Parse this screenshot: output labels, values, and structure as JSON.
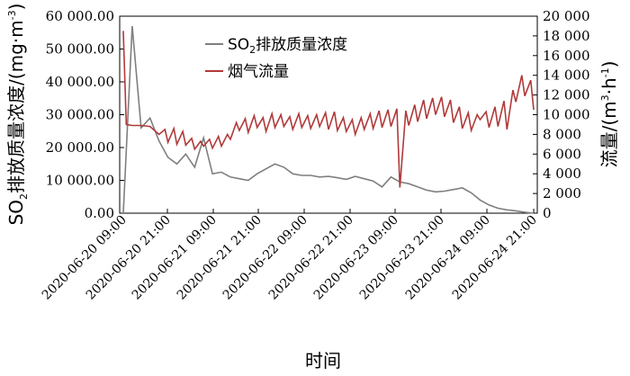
{
  "chart_data": {
    "type": "line",
    "x_ticks": [
      "2020-06-20 09:00",
      "2020-06-20 21:00",
      "2020-06-21 09:00",
      "2020-06-21 21:00",
      "2020-06-22 09:00",
      "2020-06-22 21:00",
      "2020-06-23 09:00",
      "2020-06-23 21:00",
      "2020-06-24 09:00",
      "2020-06-24 21:00"
    ],
    "xlabel": "时间",
    "ylabel_left": "SO2排放质量浓度/(mg·m-3)",
    "ylabel_left_parts": {
      "pre": "SO",
      "sub": "2",
      "post": "排放质量浓度/(mg·m",
      "sup": "-3",
      "end": ")"
    },
    "ylabel_right": "流量/(m3·h-1)",
    "ylabel_right_parts": {
      "pre": "流量/(m",
      "sup1": "3",
      "mid": "·h",
      "sup2": "-1",
      "end": ")"
    },
    "ylim_left": [
      0,
      60000
    ],
    "ylim_right": [
      0,
      20000
    ],
    "y_ticks_left": [
      "0.00",
      "10 000.00",
      "20 000.00",
      "30 000.00",
      "40 000.00",
      "50 000.00",
      "60 000.00"
    ],
    "y_ticks_right": [
      "0",
      "2 000",
      "4 000",
      "6 000",
      "8 000",
      "10 000",
      "12 000",
      "14 000",
      "16 000",
      "18 000",
      "20 000"
    ],
    "grid": false,
    "legend_position": "top-center",
    "series": [
      {
        "name": "SO2排放质量浓度",
        "label_parts": {
          "pre": "SO",
          "sub": "2",
          "post": "排放质量浓度"
        },
        "axis": "left",
        "color": "#7f7f7f",
        "x": [
          0,
          3,
          6,
          9,
          12,
          15,
          18,
          21,
          24,
          27,
          30,
          33,
          36,
          39,
          42,
          45,
          48,
          51,
          54,
          57,
          60,
          63,
          66,
          69,
          72,
          75,
          78,
          81,
          84,
          87,
          90,
          93,
          96,
          99,
          102,
          105,
          108,
          111,
          114,
          117,
          120,
          123,
          126,
          129,
          132,
          135,
          138
        ],
        "values": [
          0,
          57000,
          26000,
          29000,
          22000,
          17000,
          15000,
          18000,
          14000,
          23000,
          12000,
          12500,
          11000,
          10500,
          10000,
          12000,
          13500,
          15000,
          14000,
          12000,
          11500,
          11500,
          11000,
          11200,
          10800,
          10300,
          11200,
          10500,
          9800,
          8000,
          11000,
          9500,
          9000,
          8000,
          7000,
          6500,
          6700,
          7200,
          7700,
          6200,
          4000,
          2500,
          1500,
          1000,
          700,
          300,
          0
        ]
      },
      {
        "name": "烟气流量",
        "axis": "right",
        "color": "#b03a3a",
        "x": [
          0,
          1,
          3,
          6,
          9,
          12,
          14,
          15,
          17,
          18,
          20,
          21,
          23,
          24,
          26,
          27,
          29,
          30,
          32,
          33,
          35,
          36,
          38,
          39,
          41,
          42,
          44,
          45,
          47,
          48,
          50,
          51,
          53,
          54,
          56,
          57,
          59,
          60,
          62,
          63,
          65,
          66,
          68,
          69,
          71,
          72,
          74,
          75,
          77,
          78,
          80,
          81,
          83,
          84,
          86,
          87,
          89,
          90,
          92,
          93,
          95,
          96,
          98,
          99,
          101,
          102,
          104,
          105,
          107,
          108,
          110,
          111,
          113,
          114,
          116,
          117,
          119,
          120,
          122,
          123,
          125,
          126,
          128,
          129,
          131,
          132,
          134,
          135,
          137,
          138
        ],
        "values": [
          18500,
          9000,
          8900,
          8900,
          8800,
          8000,
          8500,
          7200,
          8600,
          7000,
          8300,
          6900,
          7600,
          6500,
          7300,
          6800,
          7500,
          6600,
          7800,
          6800,
          8000,
          7500,
          9200,
          8400,
          9600,
          8200,
          9900,
          8700,
          9700,
          8300,
          10100,
          8700,
          10000,
          8800,
          9800,
          8500,
          10100,
          8700,
          9900,
          8600,
          10000,
          8800,
          10200,
          8500,
          10300,
          8400,
          9700,
          8300,
          9500,
          8000,
          9700,
          8500,
          10100,
          8600,
          10400,
          8700,
          10500,
          8800,
          10600,
          2600,
          10400,
          8900,
          11000,
          9300,
          11500,
          9600,
          11700,
          10000,
          11800,
          9800,
          11500,
          9200,
          10800,
          8600,
          10200,
          8400,
          10000,
          9500,
          10300,
          8700,
          10800,
          8800,
          11400,
          8500,
          12500,
          11300,
          14000,
          11900,
          13500,
          10500
        ]
      }
    ]
  }
}
